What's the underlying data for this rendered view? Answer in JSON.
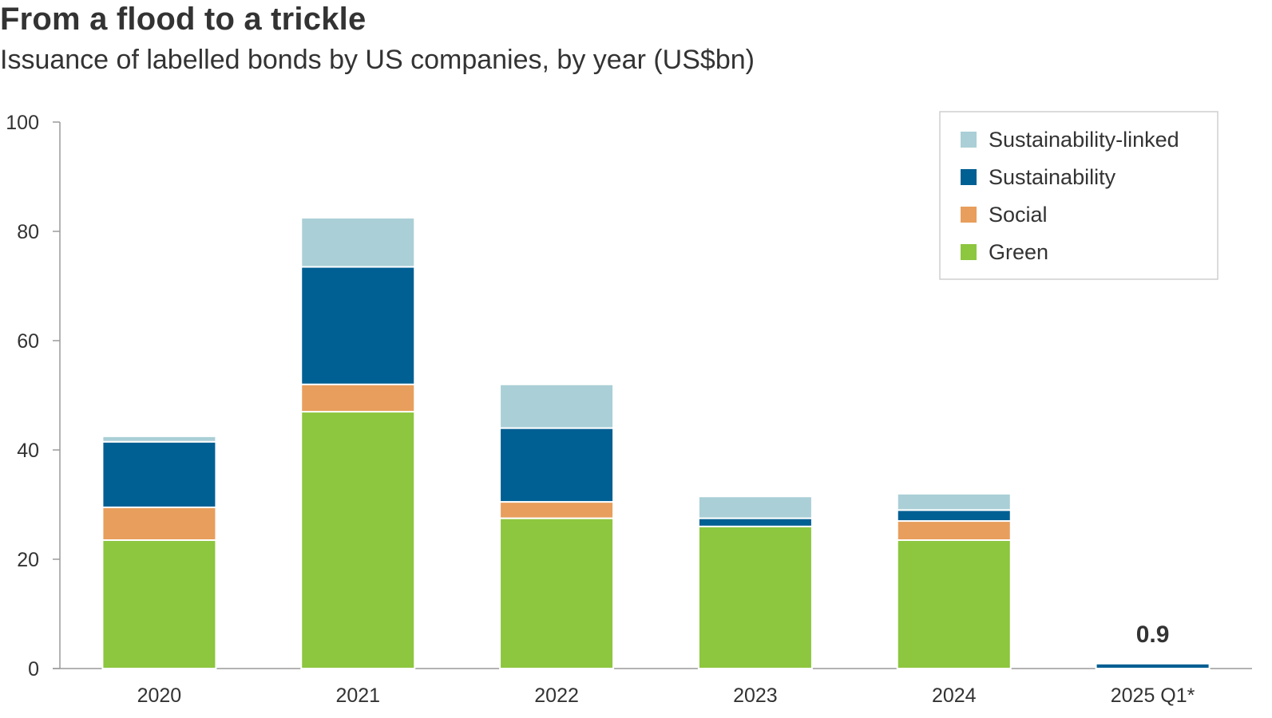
{
  "header": {
    "title": "From a flood to a trickle",
    "subtitle": "Issuance of labelled bonds by US companies, by year (US$bn)"
  },
  "chart_data": {
    "type": "bar",
    "stacked": true,
    "title": "From a flood to a trickle",
    "subtitle": "Issuance of labelled bonds by US companies, by year (US$bn)",
    "xlabel": "",
    "ylabel": "",
    "ylim": [
      0,
      100
    ],
    "yticks": [
      0,
      20,
      40,
      60,
      80,
      100
    ],
    "grid": false,
    "legend_position": "top-right",
    "categories": [
      "2020",
      "2021",
      "2022",
      "2023",
      "2024",
      "2025 Q1*"
    ],
    "series": [
      {
        "name": "Green",
        "color": "#8dc63f",
        "values": [
          23.5,
          47.0,
          27.5,
          26.0,
          23.5,
          0.0
        ]
      },
      {
        "name": "Social",
        "color": "#e89e5c",
        "values": [
          6.0,
          5.0,
          3.0,
          0.0,
          3.5,
          0.0
        ]
      },
      {
        "name": "Sustainability",
        "color": "#005f93",
        "values": [
          12.0,
          21.5,
          13.5,
          1.5,
          2.0,
          0.9
        ]
      },
      {
        "name": "Sustainability-linked",
        "color": "#aacfd6",
        "values": [
          1.0,
          9.0,
          8.0,
          4.0,
          3.0,
          0.0
        ]
      }
    ],
    "legend_order": [
      "Sustainability-linked",
      "Sustainability",
      "Social",
      "Green"
    ],
    "annotations": [
      {
        "category": "2025 Q1*",
        "text": "0.9"
      }
    ]
  }
}
